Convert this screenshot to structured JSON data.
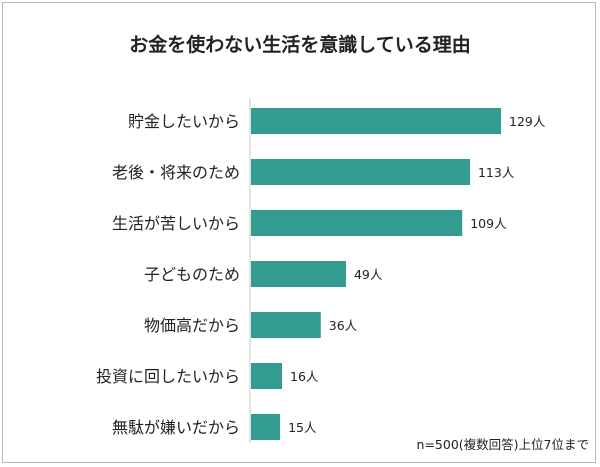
{
  "chart_data": {
    "type": "bar",
    "orientation": "horizontal",
    "title": "お金を使わない生活を意識している理由",
    "categories": [
      "貯金したいから",
      "老後・将来のため",
      "生活が苦しいから",
      "子どものため",
      "物価高だから",
      "投資に回したいから",
      "無駄が嫌いだから"
    ],
    "values": [
      129,
      113,
      109,
      49,
      36,
      16,
      15
    ],
    "value_labels": [
      "129人",
      "113人",
      "109人",
      "49人",
      "36人",
      "16人",
      "15人"
    ],
    "bar_color": "#339b8f",
    "note": "n=500(複数回答)上位7位まで",
    "grid": false,
    "legend": "none"
  }
}
